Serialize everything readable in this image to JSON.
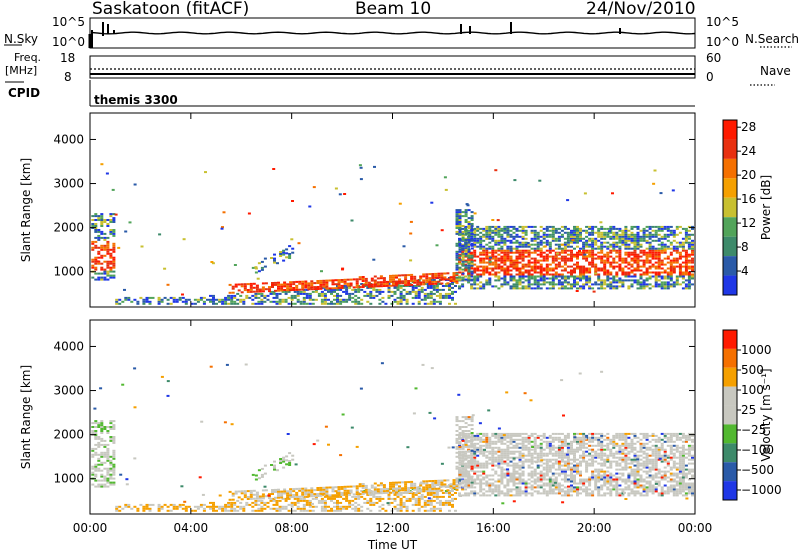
{
  "header": {
    "station": "Saskatoon (fitACF)",
    "beam": "Beam 10",
    "date": "24/Nov/2010"
  },
  "top_panels": {
    "n_sky_label": "N.Sky",
    "n_search_label": "N.Search",
    "n_ticks_left": [
      "10^5",
      "10^0"
    ],
    "n_ticks_right": [
      "10^5",
      "10^0"
    ],
    "freq_label": "Freq.",
    "freq_unit": "[MHz]",
    "freq_ticks": [
      "18",
      "8"
    ],
    "nave_label": "Nave",
    "nave_ticks": [
      "60",
      "0"
    ],
    "cpid_label": "CPID",
    "cpid_value": "themis 3300"
  },
  "colors": {
    "power_scale": [
      "#1f37e6",
      "#2a5aa8",
      "#3d8a6a",
      "#52a45a",
      "#c8c030",
      "#f5a000",
      "#f57000",
      "#e83010",
      "#ff1a00"
    ],
    "velocity_scale": [
      "#ff1a00",
      "#f57000",
      "#f5a000",
      "#c8c8c0",
      "#c8c8c0",
      "#52b830",
      "#3d8a6a",
      "#2a5aa8",
      "#1f37e6"
    ]
  },
  "chart_data": [
    {
      "type": "heatmap",
      "name": "power",
      "ylabel": "Slant Range [km]",
      "yticks": [
        "1000",
        "2000",
        "3000",
        "4000"
      ],
      "ylim": [
        200,
        4600
      ],
      "xticks": [
        "00:00",
        "04:00",
        "08:00",
        "12:00",
        "16:00",
        "20:00",
        "00:00"
      ],
      "colorbar_label": "Power [dB]",
      "colorbar_ticks": [
        "4",
        "8",
        "12",
        "16",
        "20",
        "24",
        "28"
      ]
    },
    {
      "type": "heatmap",
      "name": "velocity",
      "ylabel": "Slant Range [km]",
      "yticks": [
        "1000",
        "2000",
        "3000",
        "4000"
      ],
      "ylim": [
        200,
        4600
      ],
      "xticks": [
        "00:00",
        "04:00",
        "08:00",
        "12:00",
        "16:00",
        "20:00",
        "00:00"
      ],
      "xlabel": "Time UT",
      "colorbar_label": "Velocity [m s^-1]",
      "colorbar_ticks": [
        "1000",
        "500",
        "100",
        "25",
        "−25",
        "−100",
        "−500",
        "−1000"
      ]
    }
  ]
}
